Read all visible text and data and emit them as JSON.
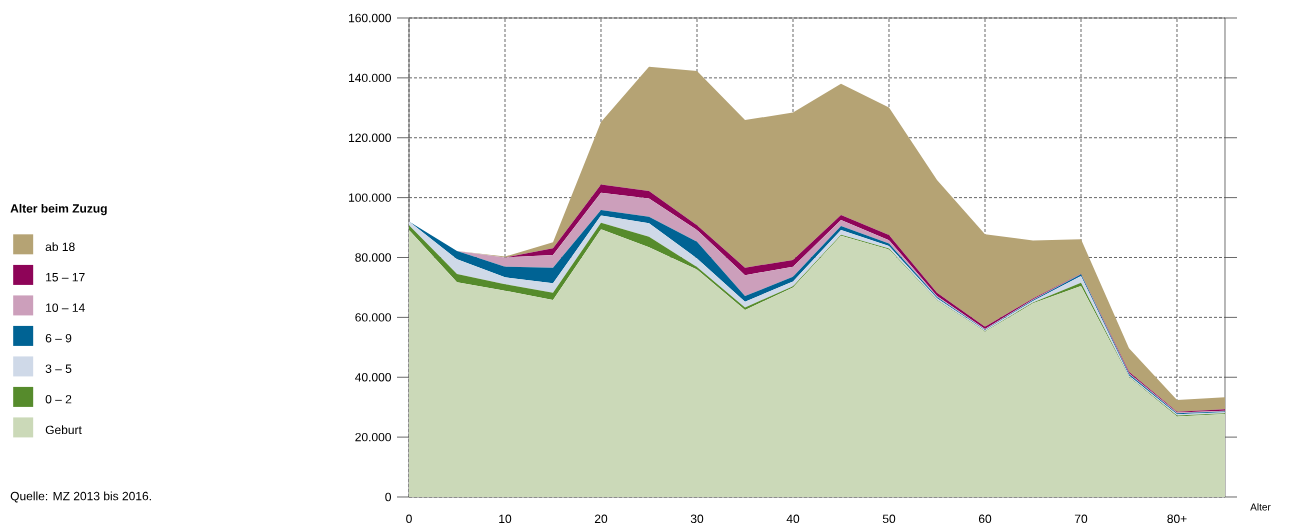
{
  "chart_data": {
    "type": "area",
    "stacked": true,
    "xlabel": "Alter",
    "legend_title": "Alter beim Zuzug",
    "legend": "left",
    "grid": true,
    "annotations": [
      "Quelle: MZ 2013 bis 2016."
    ],
    "x": [
      0,
      5,
      10,
      15,
      20,
      25,
      30,
      35,
      40,
      45,
      50,
      55,
      60,
      65,
      70,
      75,
      80,
      85
    ],
    "xlim": [
      0,
      85
    ],
    "xticks": [
      0,
      10,
      20,
      30,
      40,
      50,
      60,
      70,
      {
        "value": 80,
        "label": "80+"
      }
    ],
    "ylim": [
      0,
      160000
    ],
    "yticks": [
      0,
      {
        "value": 20000,
        "label": "20.000"
      },
      {
        "value": 40000,
        "label": "40.000"
      },
      {
        "value": 60000,
        "label": "60.000"
      },
      {
        "value": 80000,
        "label": "80.000"
      },
      {
        "value": 100000,
        "label": "100.000"
      },
      {
        "value": 120000,
        "label": "120.000"
      },
      {
        "value": 140000,
        "label": "140.000"
      },
      {
        "value": 160000,
        "label": "160.000"
      }
    ],
    "series": [
      {
        "name": "Geburt",
        "color": "#cbd9b8",
        "values": [
          89200,
          71700,
          68900,
          65800,
          89400,
          83400,
          76000,
          62500,
          70000,
          87300,
          82700,
          65600,
          55200,
          64700,
          70500,
          40000,
          26900,
          27700
        ]
      },
      {
        "name": "0 – 2",
        "color": "#568b2c",
        "values": [
          1600,
          2800,
          2200,
          2400,
          2200,
          3500,
          800,
          800,
          400,
          300,
          300,
          200,
          200,
          300,
          1100,
          200,
          300,
          300
        ]
      },
      {
        "name": "3 – 5",
        "color": "#cfd9e8",
        "values": [
          1200,
          4900,
          2300,
          3200,
          2400,
          4500,
          2900,
          1900,
          1600,
          1600,
          800,
          600,
          300,
          500,
          2200,
          400,
          400,
          300
        ]
      },
      {
        "name": "6 – 9",
        "color": "#006394",
        "values": [
          0,
          2800,
          3500,
          5200,
          1900,
          2200,
          5600,
          1900,
          1600,
          1300,
          900,
          400,
          200,
          300,
          600,
          500,
          400,
          300
        ]
      },
      {
        "name": "10 – 14",
        "color": "#cc9fbb",
        "values": [
          0,
          0,
          3100,
          4200,
          5700,
          6100,
          3900,
          7000,
          3300,
          2000,
          1100,
          300,
          200,
          200,
          100,
          200,
          200,
          200
        ]
      },
      {
        "name": "15 – 17",
        "color": "#8e0458",
        "values": [
          0,
          0,
          0,
          2300,
          2800,
          2500,
          1600,
          2500,
          2300,
          1700,
          1700,
          1100,
          800,
          300,
          100,
          500,
          300,
          500
        ]
      },
      {
        "name": "ab 18",
        "color": "#b5a374",
        "values": [
          0,
          0,
          300,
          2000,
          20900,
          41500,
          51500,
          49300,
          49200,
          43800,
          42600,
          37700,
          30900,
          19400,
          11500,
          7900,
          3900,
          4000
        ]
      }
    ]
  }
}
